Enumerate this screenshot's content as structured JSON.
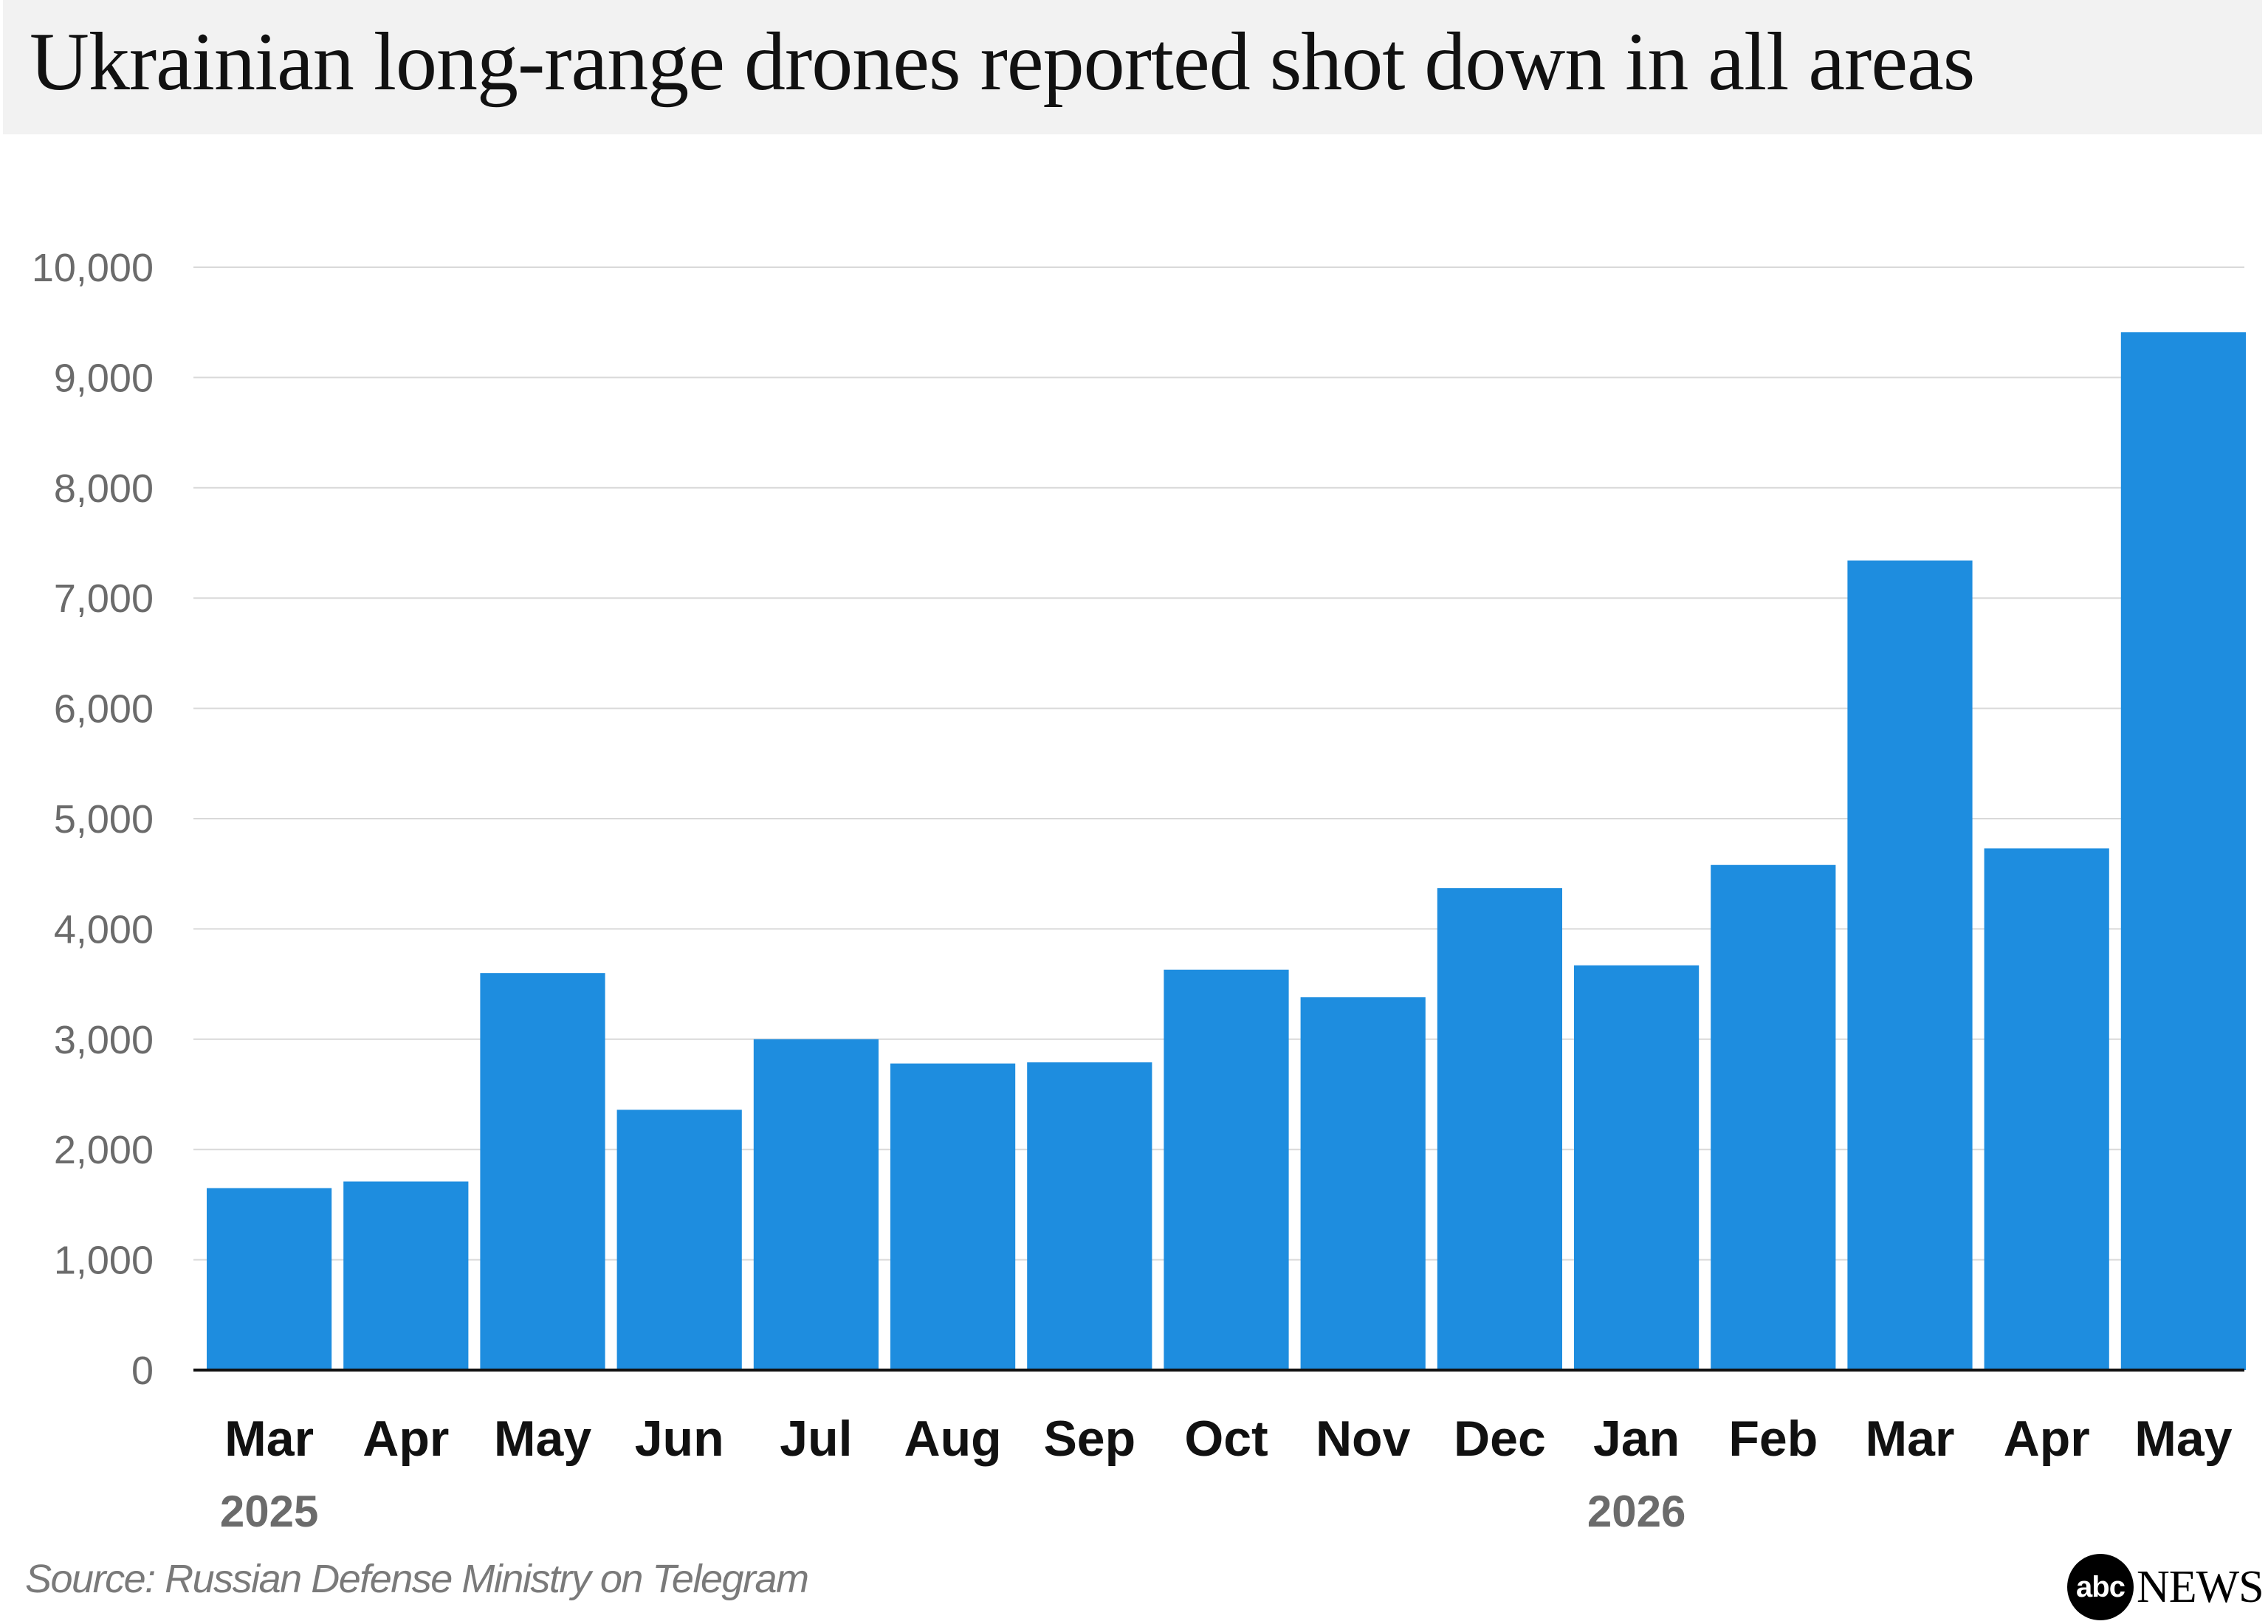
{
  "chart_data": {
    "type": "bar",
    "title": "Ukrainian long-range drones reported shot down in all areas",
    "categories": [
      "Mar",
      "Apr",
      "May",
      "Jun",
      "Jul",
      "Aug",
      "Sep",
      "Oct",
      "Nov",
      "Dec",
      "Jan",
      "Feb",
      "Mar",
      "Apr",
      "May"
    ],
    "year_labels": [
      {
        "label": "2025",
        "category_index": 0
      },
      {
        "label": "2026",
        "category_index": 10
      }
    ],
    "values": [
      1650,
      1710,
      3600,
      2360,
      3000,
      2780,
      2790,
      3630,
      3380,
      4370,
      3670,
      4580,
      7340,
      4730,
      9410
    ],
    "ylim": [
      0,
      10000
    ],
    "yticks": [
      0,
      1000,
      2000,
      3000,
      4000,
      5000,
      6000,
      7000,
      8000,
      9000,
      10000
    ],
    "ytick_labels": [
      "0",
      "1,000",
      "2,000",
      "3,000",
      "4,000",
      "5,000",
      "6,000",
      "7,000",
      "8,000",
      "9,000",
      "10,000"
    ],
    "grid": true,
    "xlabel": "",
    "ylabel": "",
    "bar_color": "#1e8ddf"
  },
  "source": "Source: Russian Defense Ministry on Telegram",
  "logo": {
    "circle_text": "abc",
    "text": "NEWS"
  }
}
